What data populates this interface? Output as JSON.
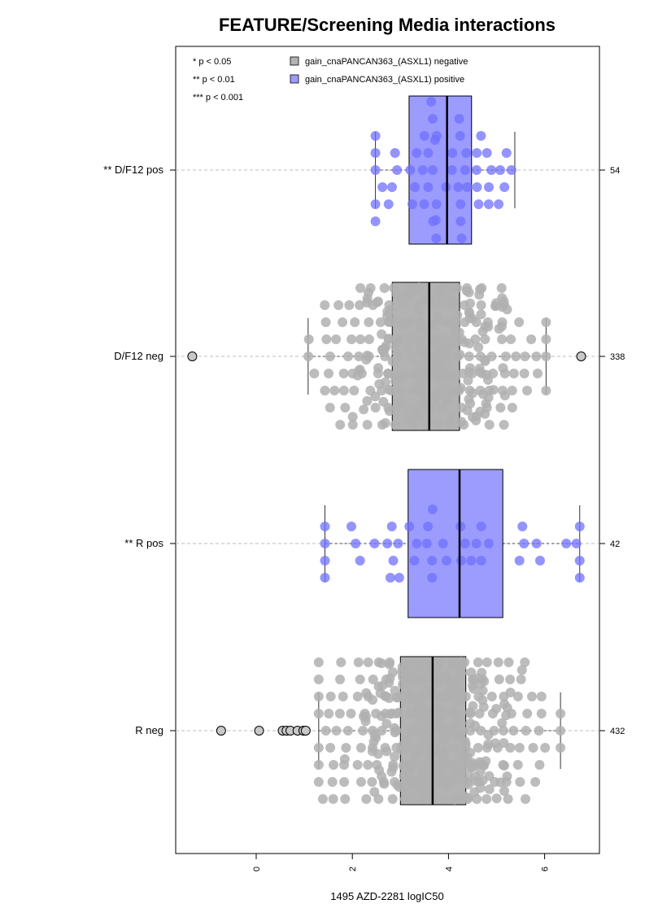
{
  "chart_data": {
    "type": "boxplot",
    "orientation": "horizontal",
    "title": "FEATURE/Screening Media interactions",
    "xlabel": "1495 AZD-2281 logIC50",
    "x_ticks": [
      0,
      2,
      4,
      6
    ],
    "xlim": [
      -1.7,
      7.1
    ],
    "grid": "dashed line per group",
    "significance_legend": [
      "* p < 0.05",
      "** p < 0.01",
      "*** p < 0.001"
    ],
    "legend": {
      "position": "top-right",
      "entries": [
        {
          "label": "gain_cnaPANCAN363_(ASXL1) negative",
          "color": "#b3b3b3"
        },
        {
          "label": "gain_cnaPANCAN363_(ASXL1) positive",
          "color": "#9c9cff"
        }
      ]
    },
    "colors": {
      "negative_fill": "#b3b3b3",
      "positive_fill": "#9c9cff",
      "negative_points": "#b0b0b0",
      "positive_points": "#7070ff"
    },
    "groups": [
      {
        "label": "** D/F12 pos",
        "n": "54",
        "status": "positive",
        "q1": 3.18,
        "median": 3.97,
        "q3": 4.48,
        "whisker_low": 2.48,
        "whisker_high": 5.38,
        "outliers": []
      },
      {
        "label": "D/F12 neg",
        "n": "338",
        "status": "negative",
        "q1": 2.83,
        "median": 3.6,
        "q3": 4.23,
        "whisker_low": 1.08,
        "whisker_high": 6.03,
        "outliers": [
          -1.33,
          6.76
        ]
      },
      {
        "label": "** R pos",
        "n": "42",
        "status": "positive",
        "q1": 3.16,
        "median": 4.23,
        "q3": 5.13,
        "whisker_low": 1.43,
        "whisker_high": 6.73,
        "outliers": []
      },
      {
        "label": "R neg",
        "n": "432",
        "status": "negative",
        "q1": 3.0,
        "median": 3.67,
        "q3": 4.36,
        "whisker_low": 1.3,
        "whisker_high": 6.33,
        "outliers": [
          -0.73,
          0.06,
          0.55,
          0.63,
          0.71,
          0.86,
          0.98,
          1.03
        ]
      }
    ]
  }
}
